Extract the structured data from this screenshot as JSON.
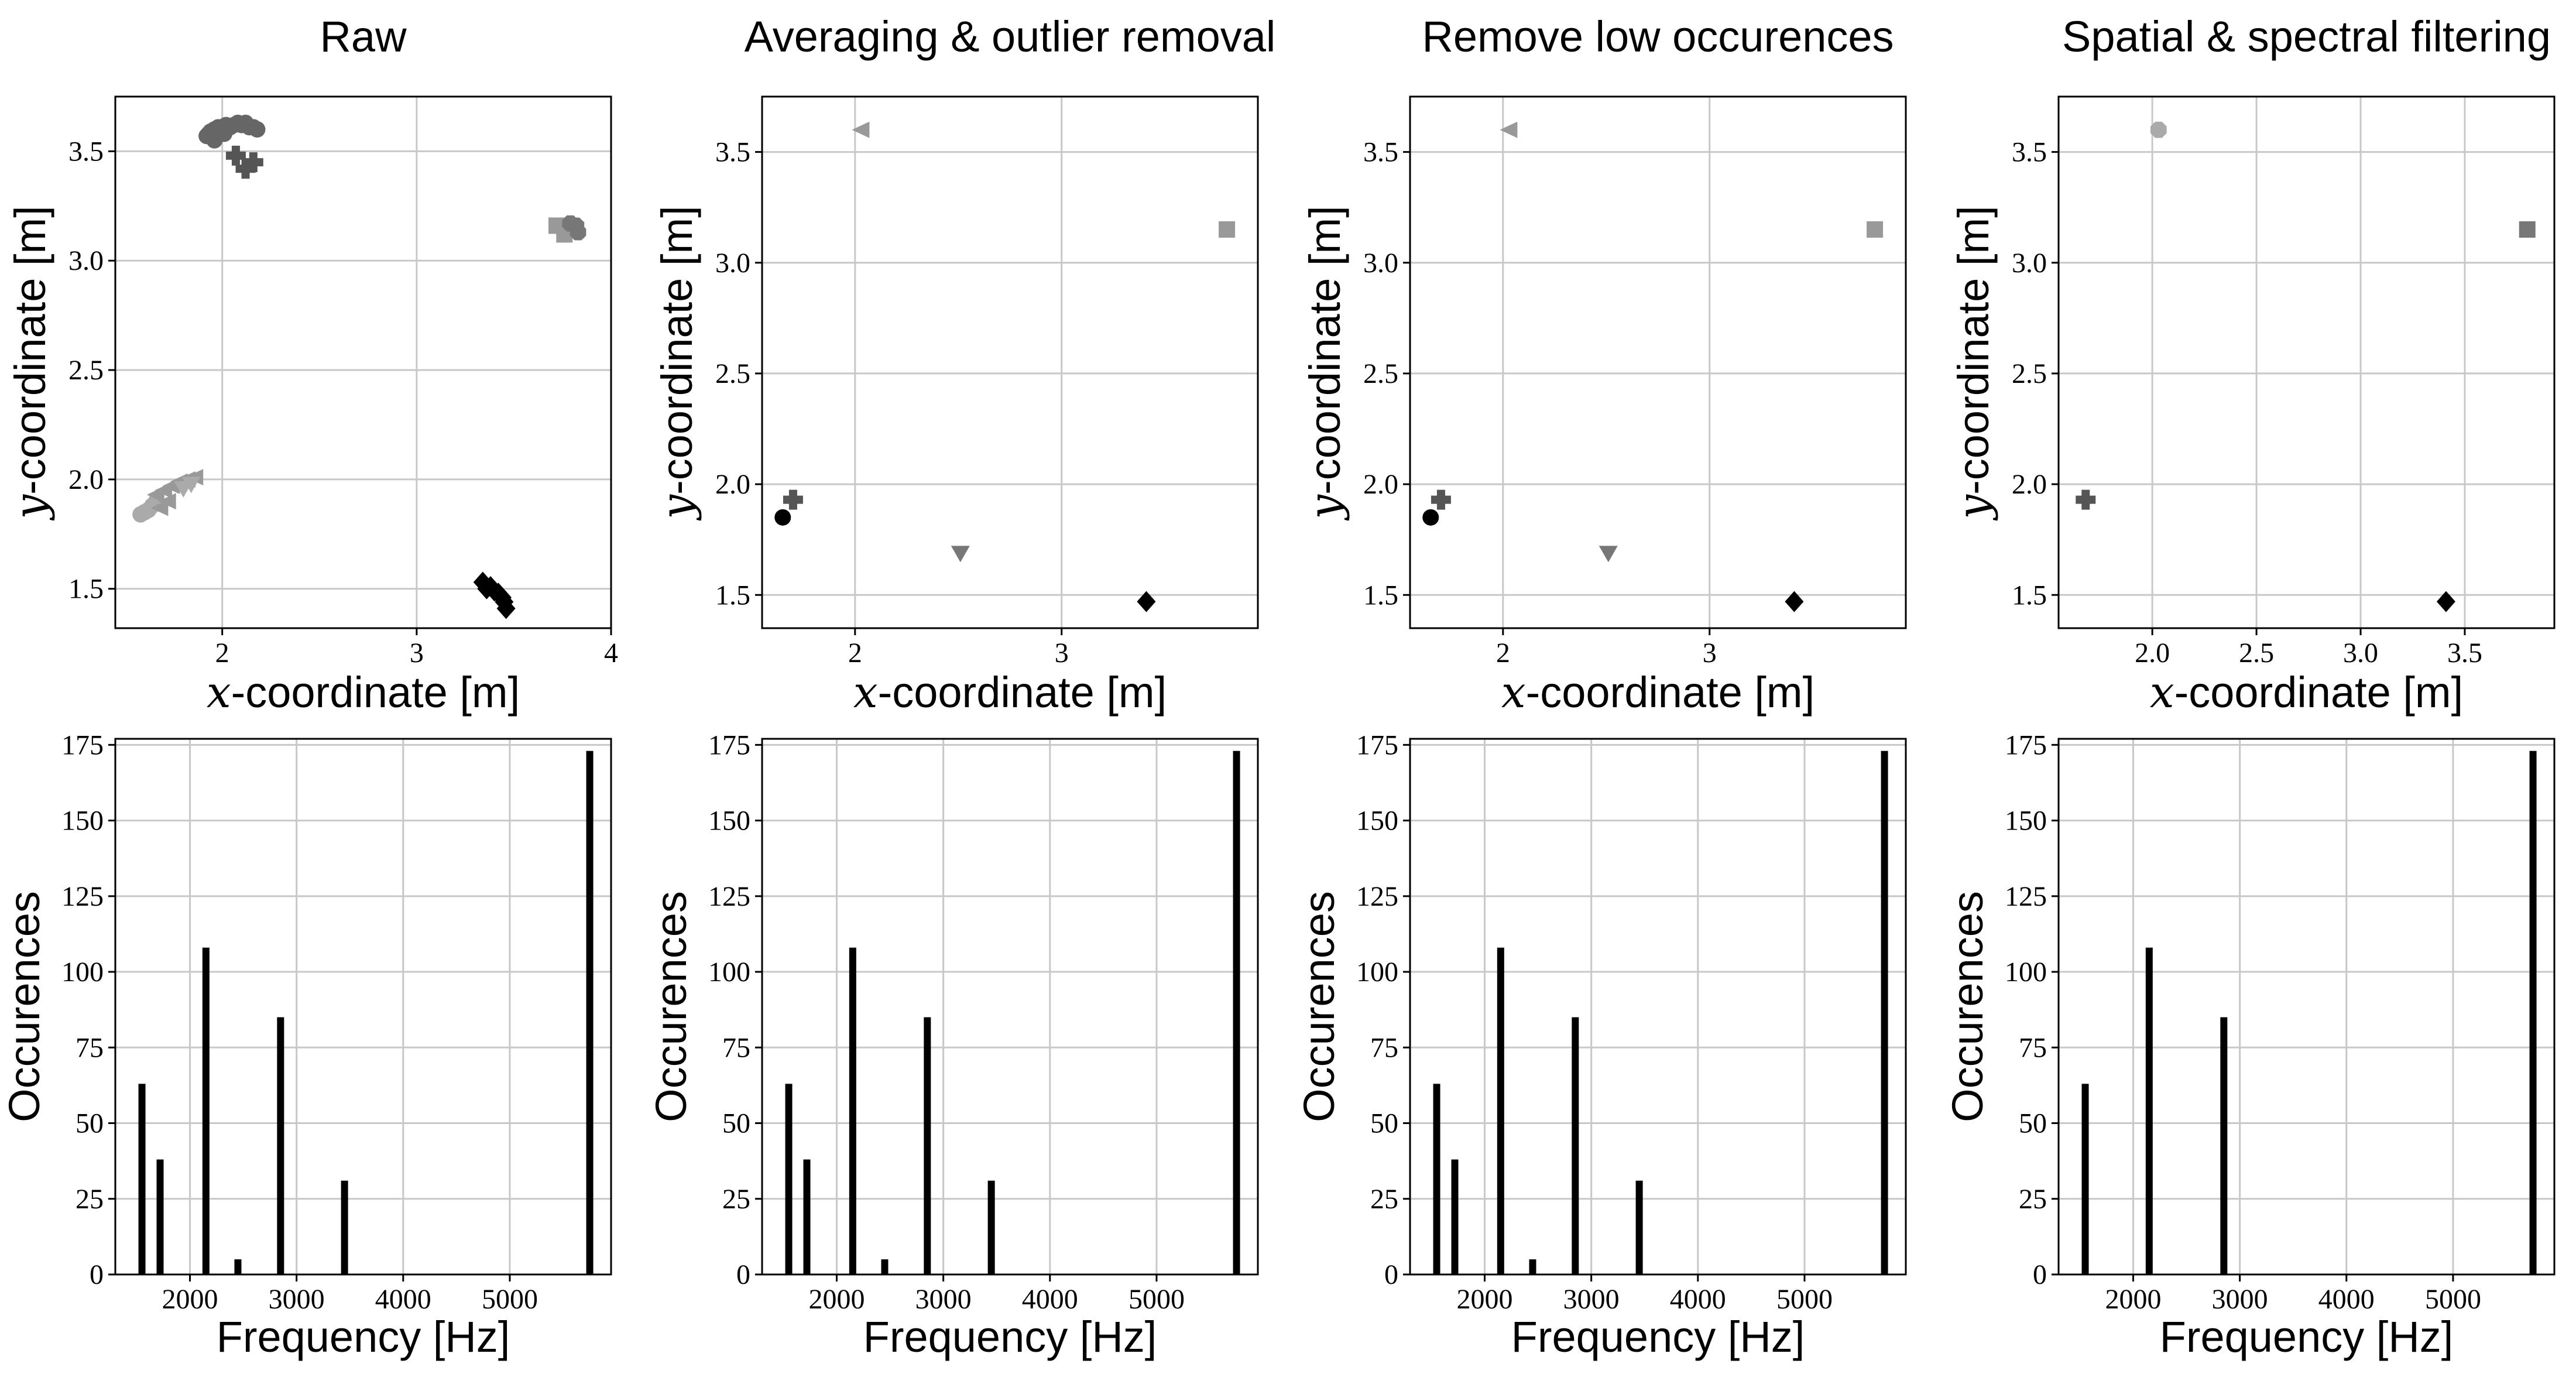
{
  "chart_data": [
    {
      "panel": "scatter-raw",
      "type": "scatter",
      "title": "Raw",
      "xlabel": {
        "var": "x",
        "rest": "-coordinate [m]"
      },
      "ylabel": {
        "var": "y",
        "rest": "-coordinate [m]"
      },
      "xlim": [
        1.45,
        4.0
      ],
      "ylim": [
        1.32,
        3.75
      ],
      "xticks": [
        2,
        3,
        4
      ],
      "xtick_labels": [
        "2",
        "3",
        "4"
      ],
      "yticks": [
        1.5,
        2.0,
        2.5,
        3.0,
        3.5
      ],
      "ytick_labels": [
        "1.5",
        "2.0",
        "2.5",
        "3.0",
        "3.5"
      ],
      "grid": true,
      "series": [
        {
          "name": "cluster-upper-left",
          "marker": "circle",
          "color": "#666666",
          "points": [
            [
              1.92,
              3.57
            ],
            [
              1.94,
              3.59
            ],
            [
              1.96,
              3.6
            ],
            [
              1.98,
              3.61
            ],
            [
              2.0,
              3.6
            ],
            [
              2.02,
              3.62
            ],
            [
              2.04,
              3.61
            ],
            [
              1.95,
              3.56
            ],
            [
              1.97,
              3.58
            ],
            [
              1.99,
              3.59
            ],
            [
              2.06,
              3.62
            ],
            [
              2.08,
              3.63
            ],
            [
              2.1,
              3.62
            ],
            [
              2.12,
              3.63
            ],
            [
              2.14,
              3.61
            ],
            [
              2.16,
              3.61
            ],
            [
              2.18,
              3.6
            ],
            [
              1.93,
              3.58
            ],
            [
              1.96,
              3.55
            ],
            [
              2.01,
              3.58
            ]
          ]
        },
        {
          "name": "cross-upper",
          "marker": "plus",
          "color": "#555555",
          "points": [
            [
              2.07,
              3.48
            ],
            [
              2.12,
              3.42
            ],
            [
              2.16,
              3.45
            ]
          ]
        },
        {
          "name": "square-right",
          "marker": "square",
          "color": "#999999",
          "points": [
            [
              3.72,
              3.16
            ],
            [
              3.76,
              3.12
            ],
            [
              3.8,
              3.15
            ],
            [
              3.82,
              3.14
            ]
          ]
        },
        {
          "name": "octagon-right",
          "marker": "octagon",
          "color": "#777777",
          "points": [
            [
              3.79,
              3.17
            ],
            [
              3.82,
              3.16
            ],
            [
              3.83,
              3.13
            ]
          ]
        },
        {
          "name": "circle-lower-left",
          "marker": "circle",
          "color": "#aaaaaa",
          "points": [
            [
              1.58,
              1.84
            ],
            [
              1.6,
              1.85
            ],
            [
              1.62,
              1.86
            ],
            [
              1.64,
              1.88
            ],
            [
              1.66,
              1.9
            ]
          ]
        },
        {
          "name": "triangle-lower-left",
          "marker": "triangle-left",
          "color": "#999999",
          "points": [
            [
              1.66,
              1.93
            ],
            [
              1.7,
              1.95
            ],
            [
              1.74,
              1.97
            ],
            [
              1.78,
              1.99
            ],
            [
              1.82,
              2.0
            ],
            [
              1.86,
              2.01
            ],
            [
              1.68,
              1.87
            ],
            [
              1.72,
              1.9
            ]
          ]
        },
        {
          "name": "triangle-down-lower-left",
          "marker": "triangle-down",
          "color": "#aaaaaa",
          "points": [
            [
              1.8,
              1.96
            ],
            [
              1.84,
              1.98
            ]
          ]
        },
        {
          "name": "diamond-lower-right",
          "marker": "diamond",
          "color": "#000000",
          "points": [
            [
              3.34,
              1.53
            ],
            [
              3.36,
              1.5
            ],
            [
              3.38,
              1.51
            ],
            [
              3.4,
              1.49
            ],
            [
              3.42,
              1.48
            ],
            [
              3.44,
              1.46
            ],
            [
              3.45,
              1.44
            ],
            [
              3.46,
              1.41
            ]
          ]
        }
      ]
    },
    {
      "panel": "scatter-averaging",
      "type": "scatter",
      "title": "Averaging & outlier removal",
      "xlabel": {
        "var": "x",
        "rest": "-coordinate [m]"
      },
      "ylabel": {
        "var": "y",
        "rest": "-coordinate [m]"
      },
      "xlim": [
        1.55,
        3.95
      ],
      "ylim": [
        1.35,
        3.75
      ],
      "xticks": [
        2,
        3
      ],
      "xtick_labels": [
        "2",
        "3"
      ],
      "yticks": [
        1.5,
        2.0,
        2.5,
        3.0,
        3.5
      ],
      "ytick_labels": [
        "1.5",
        "2.0",
        "2.5",
        "3.0",
        "3.5"
      ],
      "grid": true,
      "series": [
        {
          "name": "circle",
          "marker": "circle",
          "color": "#000000",
          "points": [
            [
              1.65,
              1.85
            ]
          ]
        },
        {
          "name": "plus",
          "marker": "plus",
          "color": "#555555",
          "points": [
            [
              1.7,
              1.93
            ]
          ]
        },
        {
          "name": "triangle-left",
          "marker": "triangle-left",
          "color": "#999999",
          "points": [
            [
              2.03,
              3.6
            ]
          ]
        },
        {
          "name": "triangle-down",
          "marker": "triangle-down",
          "color": "#777777",
          "points": [
            [
              2.51,
              1.69
            ]
          ]
        },
        {
          "name": "diamond",
          "marker": "diamond",
          "color": "#000000",
          "points": [
            [
              3.41,
              1.47
            ]
          ]
        },
        {
          "name": "square",
          "marker": "square",
          "color": "#999999",
          "points": [
            [
              3.8,
              3.15
            ]
          ]
        }
      ]
    },
    {
      "panel": "scatter-remove-low",
      "type": "scatter",
      "title": "Remove low occurences",
      "xlabel": {
        "var": "x",
        "rest": "-coordinate [m]"
      },
      "ylabel": {
        "var": "y",
        "rest": "-coordinate [m]"
      },
      "xlim": [
        1.55,
        3.95
      ],
      "ylim": [
        1.35,
        3.75
      ],
      "xticks": [
        2,
        3
      ],
      "xtick_labels": [
        "2",
        "3"
      ],
      "yticks": [
        1.5,
        2.0,
        2.5,
        3.0,
        3.5
      ],
      "ytick_labels": [
        "1.5",
        "2.0",
        "2.5",
        "3.0",
        "3.5"
      ],
      "grid": true,
      "series": [
        {
          "name": "circle",
          "marker": "circle",
          "color": "#000000",
          "points": [
            [
              1.65,
              1.85
            ]
          ]
        },
        {
          "name": "plus",
          "marker": "plus",
          "color": "#555555",
          "points": [
            [
              1.7,
              1.93
            ]
          ]
        },
        {
          "name": "triangle-left",
          "marker": "triangle-left",
          "color": "#999999",
          "points": [
            [
              2.03,
              3.6
            ]
          ]
        },
        {
          "name": "triangle-down",
          "marker": "triangle-down",
          "color": "#777777",
          "points": [
            [
              2.51,
              1.69
            ]
          ]
        },
        {
          "name": "diamond",
          "marker": "diamond",
          "color": "#000000",
          "points": [
            [
              3.41,
              1.47
            ]
          ]
        },
        {
          "name": "square",
          "marker": "square",
          "color": "#999999",
          "points": [
            [
              3.8,
              3.15
            ]
          ]
        }
      ]
    },
    {
      "panel": "scatter-spatial",
      "type": "scatter",
      "title": "Spatial & spectral filtering",
      "xlabel": {
        "var": "x",
        "rest": "-coordinate [m]"
      },
      "ylabel": {
        "var": "y",
        "rest": "-coordinate [m]"
      },
      "xlim": [
        1.55,
        3.93
      ],
      "ylim": [
        1.35,
        3.75
      ],
      "xticks": [
        2.0,
        2.5,
        3.0,
        3.5
      ],
      "xtick_labels": [
        "2.0",
        "2.5",
        "3.0",
        "3.5"
      ],
      "yticks": [
        1.5,
        2.0,
        2.5,
        3.0,
        3.5
      ],
      "ytick_labels": [
        "1.5",
        "2.0",
        "2.5",
        "3.0",
        "3.5"
      ],
      "grid": true,
      "series": [
        {
          "name": "plus",
          "marker": "plus",
          "color": "#555555",
          "points": [
            [
              1.68,
              1.93
            ]
          ]
        },
        {
          "name": "octagon",
          "marker": "octagon",
          "color": "#aaaaaa",
          "points": [
            [
              2.03,
              3.6
            ]
          ]
        },
        {
          "name": "diamond",
          "marker": "diamond",
          "color": "#000000",
          "points": [
            [
              3.41,
              1.47
            ]
          ]
        },
        {
          "name": "square",
          "marker": "square",
          "color": "#777777",
          "points": [
            [
              3.8,
              3.15
            ]
          ]
        }
      ]
    },
    {
      "panel": "bars-raw",
      "type": "bar",
      "xlabel": "Frequency [Hz]",
      "ylabel": "Occurences",
      "xlim": [
        1300,
        5950
      ],
      "ylim": [
        0,
        177
      ],
      "xticks": [
        2000,
        3000,
        4000,
        5000
      ],
      "xtick_labels": [
        "2000",
        "3000",
        "4000",
        "5000"
      ],
      "yticks": [
        0,
        25,
        50,
        75,
        100,
        125,
        150,
        175
      ],
      "ytick_labels": [
        "0",
        "25",
        "50",
        "75",
        "100",
        "125",
        "150",
        "175"
      ],
      "grid": true,
      "x": [
        1550,
        1720,
        2150,
        2450,
        2850,
        3450,
        5750
      ],
      "values": [
        63,
        38,
        108,
        5,
        85,
        31,
        173
      ]
    },
    {
      "panel": "bars-averaging",
      "type": "bar",
      "xlabel": "Frequency [Hz]",
      "ylabel": "Occurences",
      "xlim": [
        1300,
        5950
      ],
      "ylim": [
        0,
        177
      ],
      "xticks": [
        2000,
        3000,
        4000,
        5000
      ],
      "xtick_labels": [
        "2000",
        "3000",
        "4000",
        "5000"
      ],
      "yticks": [
        0,
        25,
        50,
        75,
        100,
        125,
        150,
        175
      ],
      "ytick_labels": [
        "0",
        "25",
        "50",
        "75",
        "100",
        "125",
        "150",
        "175"
      ],
      "grid": true,
      "x": [
        1550,
        1720,
        2150,
        2450,
        2850,
        3450,
        5750
      ],
      "values": [
        63,
        38,
        108,
        5,
        85,
        31,
        173
      ]
    },
    {
      "panel": "bars-remove-low",
      "type": "bar",
      "xlabel": "Frequency [Hz]",
      "ylabel": "Occurences",
      "xlim": [
        1300,
        5950
      ],
      "ylim": [
        0,
        177
      ],
      "xticks": [
        2000,
        3000,
        4000,
        5000
      ],
      "xtick_labels": [
        "2000",
        "3000",
        "4000",
        "5000"
      ],
      "yticks": [
        0,
        25,
        50,
        75,
        100,
        125,
        150,
        175
      ],
      "ytick_labels": [
        "0",
        "25",
        "50",
        "75",
        "100",
        "125",
        "150",
        "175"
      ],
      "grid": true,
      "x": [
        1550,
        1720,
        2150,
        2450,
        2850,
        3450,
        5750
      ],
      "values": [
        63,
        38,
        108,
        5,
        85,
        31,
        173
      ]
    },
    {
      "panel": "bars-spatial",
      "type": "bar",
      "xlabel": "Frequency [Hz]",
      "ylabel": "Occurences",
      "xlim": [
        1300,
        5950
      ],
      "ylim": [
        0,
        177
      ],
      "xticks": [
        2000,
        3000,
        4000,
        5000
      ],
      "xtick_labels": [
        "2000",
        "3000",
        "4000",
        "5000"
      ],
      "yticks": [
        0,
        25,
        50,
        75,
        100,
        125,
        150,
        175
      ],
      "ytick_labels": [
        "0",
        "25",
        "50",
        "75",
        "100",
        "125",
        "150",
        "175"
      ],
      "grid": true,
      "x": [
        1550,
        2150,
        2850,
        5750
      ],
      "values": [
        63,
        108,
        85,
        173
      ]
    }
  ]
}
